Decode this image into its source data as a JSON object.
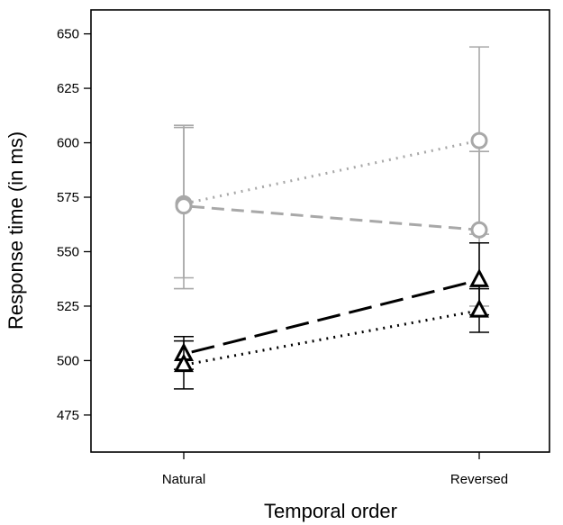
{
  "chart_data": {
    "type": "line",
    "title": "",
    "xlabel": "Temporal order",
    "ylabel": "Response time (in ms)",
    "categories": [
      "Natural",
      "Reversed"
    ],
    "ylim": [
      458,
      661
    ],
    "yticks": [
      475,
      500,
      525,
      550,
      575,
      600,
      625,
      650
    ],
    "grid": false,
    "legend": "none",
    "series": [
      {
        "marker": "circle",
        "line_style": "dotted",
        "color": "#a8a8a8",
        "values": [
          572,
          601
        ],
        "error_low": [
          533,
          558
        ],
        "error_high": [
          607,
          644
        ]
      },
      {
        "marker": "circle",
        "line_style": "dash",
        "color": "#a8a8a8",
        "values": [
          571,
          560
        ],
        "error_low": [
          538,
          525
        ],
        "error_high": [
          608,
          596
        ]
      },
      {
        "marker": "triangle",
        "line_style": "long-dash",
        "color": "#000000",
        "values": [
          503,
          537
        ],
        "error_low": [
          496,
          521
        ],
        "error_high": [
          511,
          554
        ]
      },
      {
        "marker": "triangle",
        "line_style": "dotted",
        "color": "#000000",
        "values": [
          498,
          523
        ],
        "error_low": [
          487,
          513
        ],
        "error_high": [
          509,
          533
        ]
      }
    ]
  }
}
